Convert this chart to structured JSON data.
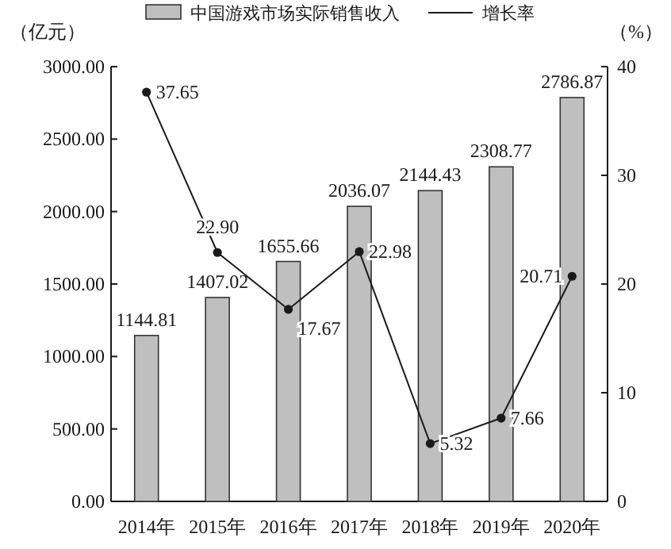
{
  "chart_data": {
    "type": "bar",
    "ylabel": "（亿元）",
    "y2label": "（%）",
    "legend": "top",
    "categories": [
      "2014年",
      "2015年",
      "2016年",
      "2017年",
      "2018年",
      "2019年",
      "2020年"
    ],
    "series": [
      {
        "name": "中国游戏市场实际销售收入",
        "color": "#bfbfbf",
        "values": [
          1144.81,
          1407.02,
          1655.66,
          2036.07,
          2144.43,
          2308.77,
          2786.87
        ],
        "value_labels": [
          "1144.81",
          "1407.02",
          "1655.66",
          "2036.07",
          "2144.43",
          "2308.77",
          "2786.87"
        ]
      },
      {
        "name": "增长率",
        "type": "line",
        "axis": "y2",
        "color": "#1a1a1a",
        "marker": "circle",
        "values": [
          37.65,
          22.9,
          17.67,
          22.98,
          5.32,
          7.66,
          20.71
        ],
        "value_labels": [
          "37.65",
          "22.90",
          "17.67",
          "22.98",
          "5.32",
          "7.66",
          "20.71"
        ]
      }
    ],
    "ylim": [
      0,
      3000
    ],
    "yticks": [
      {
        "value": 0,
        "label": "0.00"
      },
      {
        "value": 500,
        "label": "500.00"
      },
      {
        "value": 1000,
        "label": "1000.00"
      },
      {
        "value": 1500,
        "label": "1500.00"
      },
      {
        "value": 2000,
        "label": "2000.00"
      },
      {
        "value": 2500,
        "label": "2500.00"
      },
      {
        "value": 3000,
        "label": "3000.00"
      }
    ],
    "y2lim": [
      0,
      40
    ],
    "y2ticks": [
      0,
      10,
      20,
      30,
      40
    ],
    "grid": false
  }
}
